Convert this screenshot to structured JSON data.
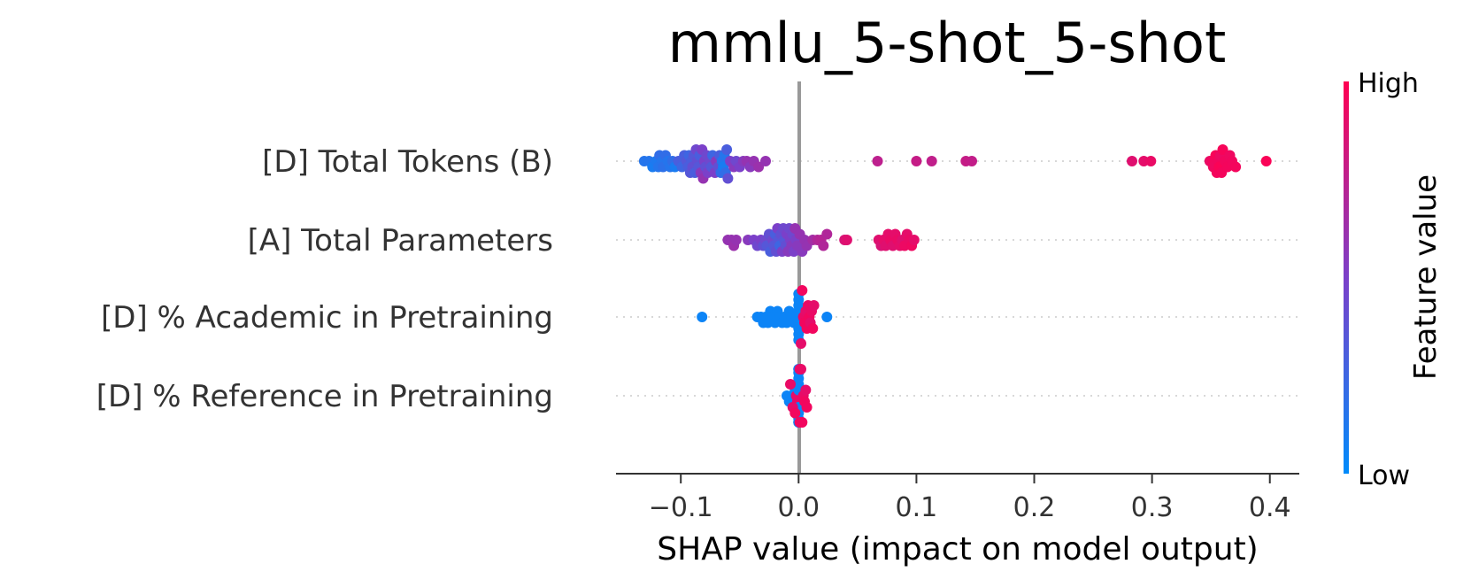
{
  "chart_data": {
    "type": "scatter",
    "subtype": "shap-beeswarm",
    "title": "mmlu_5-shot_5-shot",
    "xlabel": "SHAP value (impact on model output)",
    "ylabel": "",
    "xlim": [
      -0.155,
      0.425
    ],
    "xticks": [
      -0.1,
      0.0,
      0.1,
      0.2,
      0.3,
      0.4
    ],
    "xtick_labels": [
      "−0.1",
      "0.0",
      "0.1",
      "0.2",
      "0.3",
      "0.4"
    ],
    "grid": false,
    "colorbar": {
      "label": "Feature value",
      "high_label": "High",
      "low_label": "Low",
      "low_color": "#008bfb",
      "high_color": "#ff0052"
    },
    "zero_line_color": "#999999",
    "features": [
      {
        "name": "[D] Total Tokens (B)",
        "points": [
          [
            -0.131,
            0.15
          ],
          [
            -0.127,
            0.15
          ],
          [
            -0.124,
            0.1
          ],
          [
            -0.121,
            0.12
          ],
          [
            -0.119,
            0.15
          ],
          [
            -0.118,
            0.2
          ],
          [
            -0.116,
            0.15
          ],
          [
            -0.115,
            0.18
          ],
          [
            -0.113,
            0.2
          ],
          [
            -0.111,
            0.15
          ],
          [
            -0.109,
            0.15
          ],
          [
            -0.107,
            0.2
          ],
          [
            -0.105,
            0.1
          ],
          [
            -0.102,
            0.3
          ],
          [
            -0.099,
            0.25
          ],
          [
            -0.097,
            0.3
          ],
          [
            -0.095,
            0.35
          ],
          [
            -0.094,
            0.3
          ],
          [
            -0.093,
            0.25
          ],
          [
            -0.092,
            0.35
          ],
          [
            -0.091,
            0.3
          ],
          [
            -0.09,
            0.4
          ],
          [
            -0.089,
            0.35
          ],
          [
            -0.088,
            0.3
          ],
          [
            -0.087,
            0.45
          ],
          [
            -0.086,
            0.4
          ],
          [
            -0.085,
            0.35
          ],
          [
            -0.084,
            0.3
          ],
          [
            -0.083,
            0.55
          ],
          [
            -0.082,
            0.5
          ],
          [
            -0.081,
            0.6
          ],
          [
            -0.08,
            0.5
          ],
          [
            -0.079,
            0.4
          ],
          [
            -0.078,
            0.45
          ],
          [
            -0.077,
            0.5
          ],
          [
            -0.075,
            0.45
          ],
          [
            -0.074,
            0.35
          ],
          [
            -0.073,
            0.25
          ],
          [
            -0.071,
            0.5
          ],
          [
            -0.07,
            0.55
          ],
          [
            -0.068,
            0.4
          ],
          [
            -0.067,
            0.3
          ],
          [
            -0.066,
            0.2
          ],
          [
            -0.065,
            0.15
          ],
          [
            -0.064,
            0.1
          ],
          [
            -0.063,
            0.15
          ],
          [
            -0.062,
            0.2
          ],
          [
            -0.061,
            0.3
          ],
          [
            -0.06,
            0.4
          ],
          [
            -0.058,
            0.5
          ],
          [
            -0.055,
            0.55
          ],
          [
            -0.053,
            0.45
          ],
          [
            -0.05,
            0.5
          ],
          [
            -0.047,
            0.55
          ],
          [
            -0.044,
            0.6
          ],
          [
            -0.041,
            0.55
          ],
          [
            -0.038,
            0.6
          ],
          [
            -0.034,
            0.62
          ],
          [
            -0.028,
            0.6
          ],
          [
            0.067,
            0.75
          ],
          [
            0.1,
            0.78
          ],
          [
            0.113,
            0.76
          ],
          [
            0.142,
            0.78
          ],
          [
            0.147,
            0.77
          ],
          [
            0.283,
            0.88
          ],
          [
            0.293,
            0.9
          ],
          [
            0.299,
            0.92
          ],
          [
            0.349,
            0.92
          ],
          [
            0.351,
            0.95
          ],
          [
            0.352,
            0.94
          ],
          [
            0.354,
            0.97
          ],
          [
            0.355,
            0.96
          ],
          [
            0.356,
            0.95
          ],
          [
            0.357,
            0.98
          ],
          [
            0.358,
            0.93
          ],
          [
            0.359,
            0.96
          ],
          [
            0.36,
            0.97
          ],
          [
            0.362,
            0.95
          ],
          [
            0.364,
            0.96
          ],
          [
            0.366,
            0.94
          ],
          [
            0.368,
            0.95
          ],
          [
            0.371,
            0.96
          ],
          [
            0.397,
            0.98
          ]
        ]
      },
      {
        "name": "[A] Total Parameters",
        "points": [
          [
            -0.06,
            0.6
          ],
          [
            -0.057,
            0.6
          ],
          [
            -0.055,
            0.62
          ],
          [
            -0.053,
            0.6
          ],
          [
            -0.043,
            0.55
          ],
          [
            -0.038,
            0.5
          ],
          [
            -0.035,
            0.45
          ],
          [
            -0.032,
            0.5
          ],
          [
            -0.03,
            0.4
          ],
          [
            -0.028,
            0.45
          ],
          [
            -0.027,
            0.35
          ],
          [
            -0.025,
            0.4
          ],
          [
            -0.024,
            0.3
          ],
          [
            -0.022,
            0.45
          ],
          [
            -0.021,
            0.35
          ],
          [
            -0.02,
            0.3
          ],
          [
            -0.019,
            0.4
          ],
          [
            -0.018,
            0.5
          ],
          [
            -0.017,
            0.35
          ],
          [
            -0.016,
            0.25
          ],
          [
            -0.015,
            0.4
          ],
          [
            -0.014,
            0.5
          ],
          [
            -0.013,
            0.45
          ],
          [
            -0.012,
            0.35
          ],
          [
            -0.011,
            0.4
          ],
          [
            -0.01,
            0.5
          ],
          [
            -0.009,
            0.55
          ],
          [
            -0.008,
            0.45
          ],
          [
            -0.007,
            0.5
          ],
          [
            -0.006,
            0.55
          ],
          [
            -0.005,
            0.45
          ],
          [
            -0.004,
            0.5
          ],
          [
            -0.003,
            0.6
          ],
          [
            -0.002,
            0.5
          ],
          [
            -0.001,
            0.55
          ],
          [
            0.001,
            0.6
          ],
          [
            0.003,
            0.55
          ],
          [
            0.005,
            0.6
          ],
          [
            0.007,
            0.6
          ],
          [
            0.012,
            0.65
          ],
          [
            0.016,
            0.7
          ],
          [
            0.019,
            0.72
          ],
          [
            0.021,
            0.7
          ],
          [
            0.024,
            0.7
          ],
          [
            0.039,
            0.85
          ],
          [
            0.041,
            0.88
          ],
          [
            0.068,
            0.88
          ],
          [
            0.07,
            0.85
          ],
          [
            0.072,
            0.9
          ],
          [
            0.074,
            0.88
          ],
          [
            0.076,
            0.9
          ],
          [
            0.078,
            0.92
          ],
          [
            0.08,
            0.88
          ],
          [
            0.082,
            0.9
          ],
          [
            0.084,
            0.92
          ],
          [
            0.086,
            0.9
          ],
          [
            0.088,
            0.88
          ],
          [
            0.09,
            0.93
          ],
          [
            0.092,
            0.9
          ],
          [
            0.094,
            0.92
          ],
          [
            0.096,
            0.94
          ],
          [
            0.098,
            0.9
          ]
        ]
      },
      {
        "name": "[D] % Academic in Pretraining",
        "points": [
          [
            -0.082,
            0.05
          ],
          [
            -0.035,
            0.05
          ],
          [
            -0.032,
            0.05
          ],
          [
            -0.03,
            0.05
          ],
          [
            -0.028,
            0.05
          ],
          [
            -0.026,
            0.05
          ],
          [
            -0.024,
            0.05
          ],
          [
            -0.022,
            0.05
          ],
          [
            -0.02,
            0.05
          ],
          [
            -0.018,
            0.05
          ],
          [
            -0.016,
            0.05
          ],
          [
            -0.014,
            0.05
          ],
          [
            -0.012,
            0.05
          ],
          [
            -0.01,
            0.05
          ],
          [
            -0.008,
            0.05
          ],
          [
            -0.006,
            0.05
          ],
          [
            -0.004,
            0.05
          ],
          [
            -0.002,
            0.05
          ],
          [
            0.0,
            0.05
          ],
          [
            0.0,
            0.05
          ],
          [
            0.0,
            0.05
          ],
          [
            0.0,
            0.05
          ],
          [
            0.0,
            0.05
          ],
          [
            0.0,
            0.05
          ],
          [
            0.0,
            0.05
          ],
          [
            0.0,
            0.05
          ],
          [
            0.002,
            0.9
          ],
          [
            0.003,
            0.95
          ],
          [
            0.004,
            0.92
          ],
          [
            0.005,
            0.95
          ],
          [
            0.006,
            0.9
          ],
          [
            0.007,
            0.95
          ],
          [
            0.008,
            0.92
          ],
          [
            0.009,
            0.95
          ],
          [
            0.01,
            0.9
          ],
          [
            0.011,
            0.92
          ],
          [
            0.012,
            0.95
          ],
          [
            0.013,
            0.9
          ],
          [
            0.024,
            0.05
          ]
        ]
      },
      {
        "name": "[D] % Reference in Pretraining",
        "points": [
          [
            -0.01,
            0.05
          ],
          [
            -0.008,
            0.05
          ],
          [
            -0.006,
            0.05
          ],
          [
            -0.004,
            0.05
          ],
          [
            -0.003,
            0.05
          ],
          [
            -0.002,
            0.9
          ],
          [
            -0.001,
            0.92
          ],
          [
            0.0,
            0.05
          ],
          [
            0.0,
            0.05
          ],
          [
            0.0,
            0.05
          ],
          [
            0.0,
            0.05
          ],
          [
            0.0,
            0.05
          ],
          [
            0.0,
            0.05
          ],
          [
            0.0,
            0.05
          ],
          [
            0.0,
            0.05
          ],
          [
            0.0,
            0.05
          ],
          [
            0.0,
            0.05
          ],
          [
            0.0,
            0.05
          ],
          [
            0.001,
            0.95
          ],
          [
            0.002,
            0.9
          ],
          [
            0.003,
            0.95
          ],
          [
            0.004,
            0.92
          ],
          [
            0.005,
            0.95
          ],
          [
            0.006,
            0.9
          ],
          [
            0.007,
            0.95
          ],
          [
            -0.005,
            0.9
          ],
          [
            -0.007,
            0.92
          ],
          [
            -0.003,
            0.95
          ],
          [
            0.001,
            0.92
          ]
        ]
      }
    ]
  }
}
